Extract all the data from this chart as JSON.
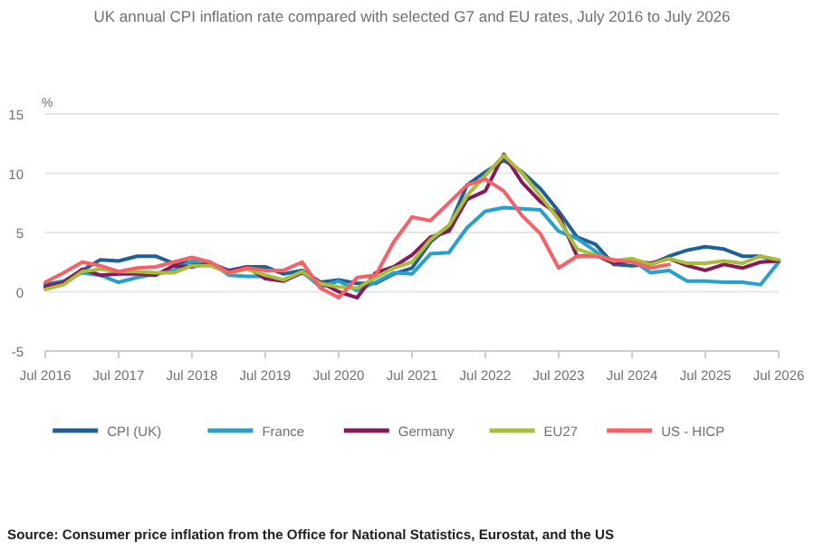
{
  "chart_data": {
    "type": "line",
    "title": "UK annual CPI inflation rate compared with selected G7 and EU rates, July 2016 to July 2026",
    "ylabel": "%",
    "x": [
      "2016-07",
      "2016-10",
      "2017-01",
      "2017-04",
      "2017-07",
      "2017-10",
      "2018-01",
      "2018-04",
      "2018-07",
      "2018-10",
      "2019-01",
      "2019-04",
      "2019-07",
      "2019-10",
      "2020-01",
      "2020-04",
      "2020-07",
      "2020-10",
      "2021-01",
      "2021-04",
      "2021-07",
      "2021-10",
      "2022-01",
      "2022-04",
      "2022-07",
      "2022-10",
      "2023-01",
      "2023-04",
      "2023-07",
      "2023-10",
      "2024-01",
      "2024-04",
      "2024-07",
      "2024-10",
      "2025-01",
      "2025-04",
      "2025-07",
      "2025-10",
      "2026-01",
      "2026-04",
      "2026-07"
    ],
    "series": [
      {
        "name": "CPI (UK)",
        "color": "#206095",
        "values": [
          0.6,
          0.9,
          1.8,
          2.7,
          2.6,
          3.0,
          3.0,
          2.4,
          2.5,
          2.4,
          1.8,
          2.1,
          2.1,
          1.5,
          1.8,
          0.8,
          1.0,
          0.7,
          0.7,
          1.5,
          2.0,
          4.2,
          5.5,
          9.0,
          10.1,
          11.1,
          10.1,
          8.7,
          6.8,
          4.6,
          4.0,
          2.3,
          2.2,
          2.3,
          3.0,
          3.5,
          3.8,
          3.6,
          3.0,
          3.0,
          2.5
        ]
      },
      {
        "name": "France",
        "color": "#27a0cc",
        "values": [
          0.4,
          0.9,
          1.6,
          1.4,
          0.8,
          1.2,
          1.5,
          1.8,
          2.6,
          2.5,
          1.4,
          1.3,
          1.3,
          1.0,
          1.7,
          0.4,
          0.9,
          0.1,
          0.8,
          1.6,
          1.5,
          3.2,
          3.3,
          5.4,
          6.8,
          7.1,
          7.0,
          6.9,
          5.1,
          4.5,
          3.4,
          2.4,
          2.7,
          1.6,
          1.8,
          0.9,
          0.9,
          0.8,
          0.8,
          0.6,
          2.5
        ]
      },
      {
        "name": "Germany",
        "color": "#871a5b",
        "values": [
          0.4,
          0.8,
          1.9,
          1.4,
          1.5,
          1.5,
          1.4,
          2.2,
          2.1,
          2.4,
          1.7,
          2.1,
          1.1,
          0.9,
          1.6,
          0.8,
          0.0,
          -0.5,
          1.6,
          2.1,
          3.1,
          4.6,
          5.1,
          7.8,
          8.5,
          11.6,
          9.2,
          7.6,
          6.5,
          3.0,
          3.1,
          2.4,
          2.6,
          2.4,
          2.8,
          2.2,
          1.8,
          2.3,
          2.0,
          2.5,
          2.6
        ]
      },
      {
        "name": "EU27",
        "color": "#a8bd3a",
        "values": [
          0.2,
          0.6,
          1.7,
          1.9,
          1.7,
          1.7,
          1.6,
          1.6,
          2.2,
          2.2,
          1.6,
          1.9,
          1.4,
          1.0,
          1.7,
          0.7,
          0.4,
          0.3,
          1.2,
          2.0,
          2.5,
          4.4,
          5.6,
          8.1,
          9.8,
          11.5,
          10.0,
          8.1,
          6.1,
          3.6,
          3.1,
          2.6,
          2.8,
          2.3,
          2.8,
          2.4,
          2.4,
          2.6,
          2.4,
          3.0,
          2.7
        ]
      },
      {
        "name": "US - HICP",
        "color": "#f66068",
        "values": [
          0.8,
          1.6,
          2.5,
          2.2,
          1.7,
          2.0,
          2.1,
          2.5,
          2.9,
          2.5,
          1.6,
          2.0,
          1.8,
          1.8,
          2.5,
          0.3,
          -0.5,
          1.2,
          1.4,
          4.2,
          6.3,
          6.0,
          7.5,
          9.0,
          9.5,
          8.5,
          6.4,
          4.9,
          2.0,
          3.0,
          3.0,
          2.7,
          2.5,
          2.0,
          2.3,
          null,
          null,
          null,
          null,
          null,
          null
        ]
      }
    ],
    "xlim": [
      "2016-07",
      "2026-07"
    ],
    "xticks": [
      {
        "value": "2016-07",
        "label": "Jul 2016"
      },
      {
        "value": "2017-07",
        "label": "Jul 2017"
      },
      {
        "value": "2018-07",
        "label": "Jul 2018"
      },
      {
        "value": "2019-07",
        "label": "Jul 2019"
      },
      {
        "value": "2020-07",
        "label": "Jul 2020"
      },
      {
        "value": "2021-07",
        "label": "Jul 2021"
      },
      {
        "value": "2022-07",
        "label": "Jul 2022"
      },
      {
        "value": "2023-07",
        "label": "Jul 2023"
      },
      {
        "value": "2024-07",
        "label": "Jul 2024"
      },
      {
        "value": "2025-07",
        "label": "Jul 2025"
      },
      {
        "value": "2026-07",
        "label": "Jul 2026"
      }
    ],
    "ylim": [
      -5,
      15
    ],
    "yticks": [
      -5,
      0,
      5,
      10,
      15
    ],
    "grid": "y",
    "legend": "bottom",
    "line_style": "solid",
    "marker": "none",
    "annotations": [
      "Source: Consumer price inflation from the Office for National Statistics, Eurostat, and the US"
    ]
  }
}
